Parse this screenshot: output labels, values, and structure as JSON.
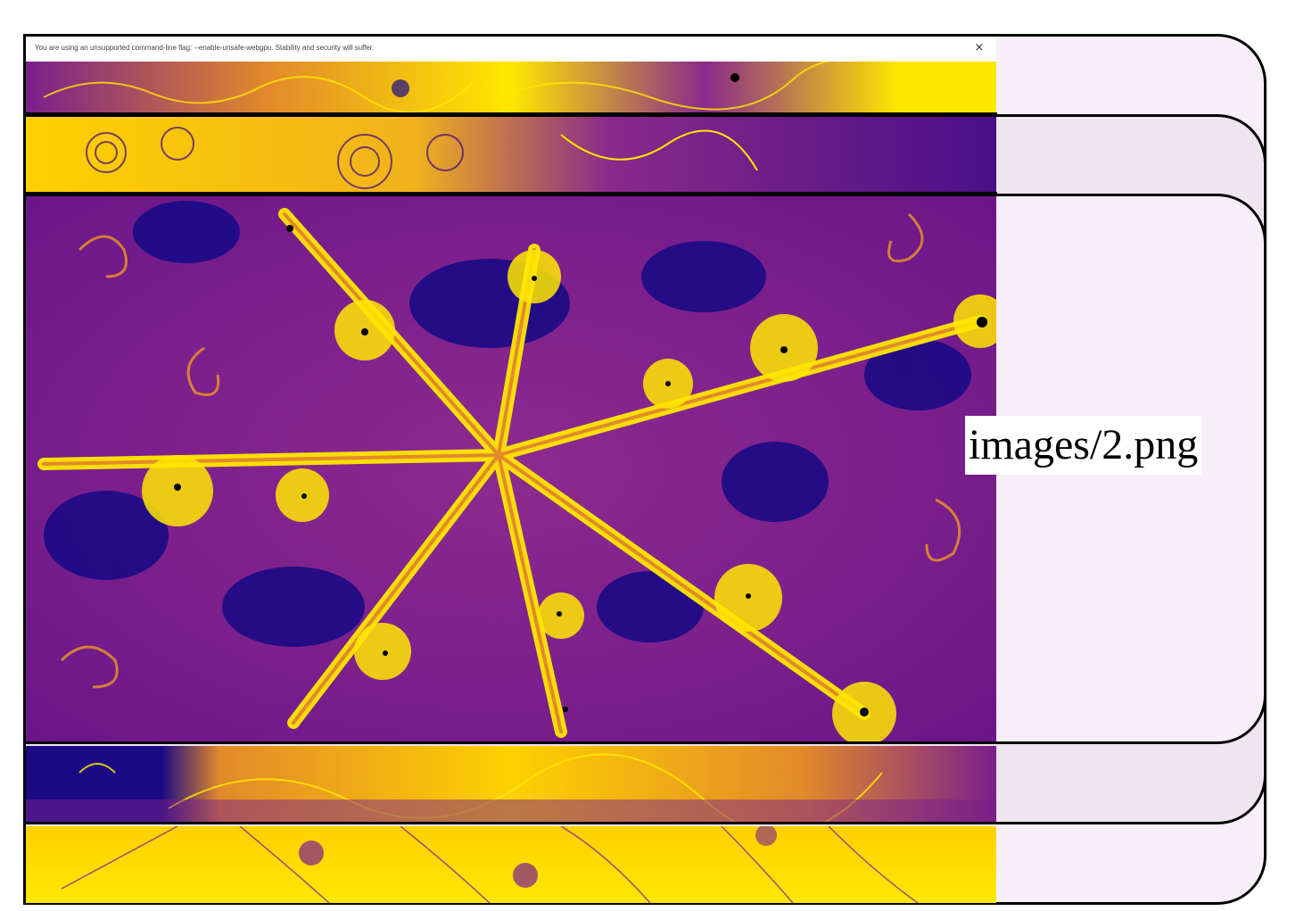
{
  "infobar": {
    "message": "You are using an unsupported command-line flag: --enable-unsafe-webgpu. Stability and security will suffer.",
    "close_label": "×",
    "close_icon": "close-icon"
  },
  "image_label": "images/2.png",
  "colors": {
    "fractal_dark": "#1a0a85",
    "fractal_purple": "#7a1f8c",
    "fractal_orange": "#e28a2a",
    "fractal_yellow": "#ffe800",
    "card_fill": "#f7eff7",
    "card_fill_alt": "#eee5ee",
    "border": "#000000"
  }
}
